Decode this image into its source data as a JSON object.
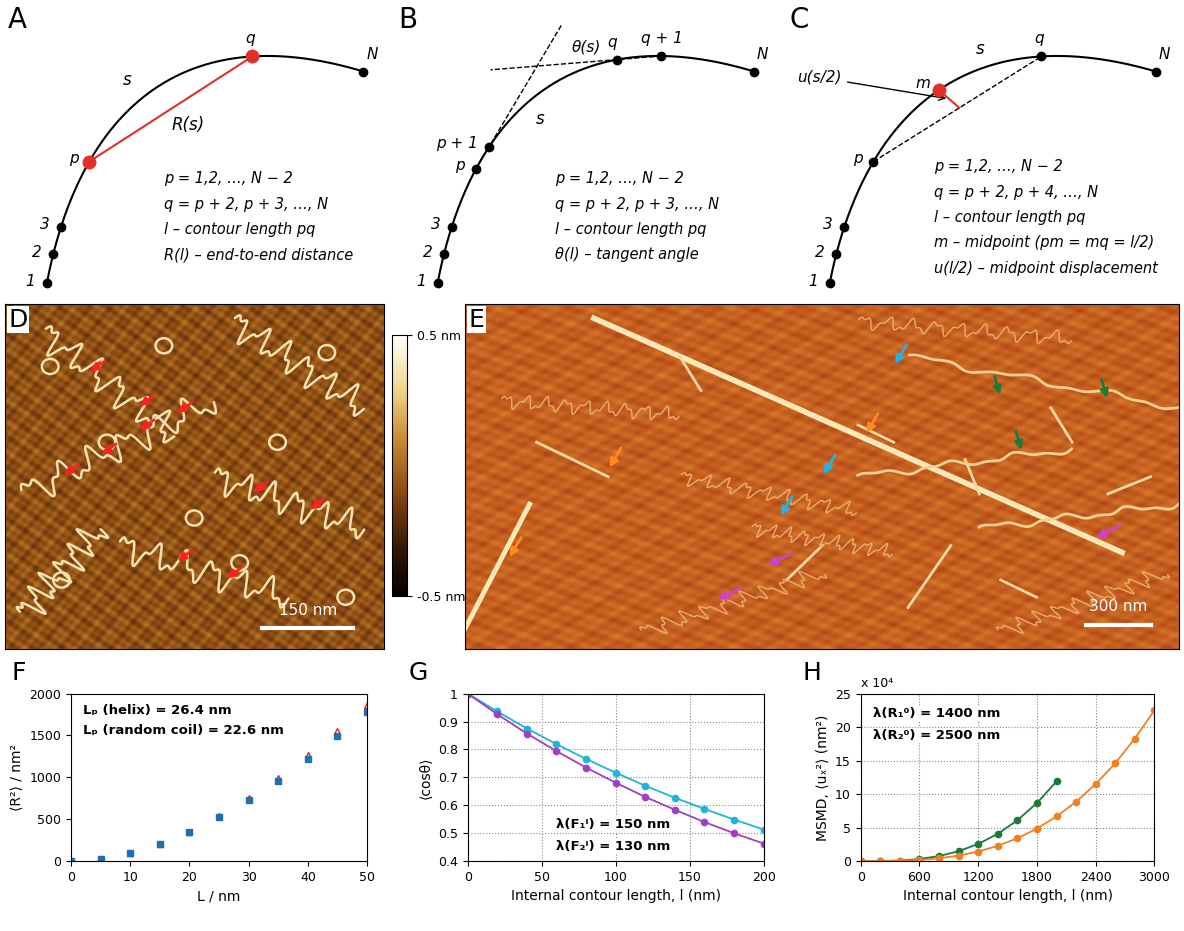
{
  "panels": {
    "A": {
      "label": "A",
      "points": [
        "1",
        "2",
        "3",
        "p",
        "q",
        "N"
      ],
      "arc": "s",
      "chord": "R(s)",
      "legend_lines": [
        "p = 1,2, …, N − 2",
        "q = p + 2, p + 3, …, N",
        "l – contour length pq",
        "R(l) – end-to-end distance"
      ]
    },
    "B": {
      "label": "B",
      "points": [
        "1",
        "2",
        "3",
        "p",
        "p + 1",
        "q",
        "q + 1",
        "N"
      ],
      "arc": "s",
      "angle": "θ(s)",
      "legend_lines": [
        "p = 1,2, …, N − 2",
        "q = p + 2, p + 3, …, N",
        "l – contour length pq",
        "θ(l) – tangent angle"
      ]
    },
    "C": {
      "label": "C",
      "points": [
        "1",
        "2",
        "3",
        "p",
        "m",
        "q",
        "N"
      ],
      "arc": "s",
      "displacement": "u(s/2)",
      "legend_lines": [
        "p = 1,2, …, N − 2",
        "q = p + 2, p + 4, …, N",
        "l – contour length pq",
        "m – midpoint (pm = mq = l/2)",
        "u(l/2) – midpoint displacement"
      ]
    },
    "D": {
      "label": "D",
      "scale_bar": "150 nm",
      "colorbar": {
        "range": [
          -0.5,
          0.5
        ],
        "ticks": [
          {
            "value": 0.5,
            "label": "0.5 nm"
          },
          {
            "value": -0.5,
            "label": "-0.5 nm"
          }
        ]
      }
    },
    "E": {
      "label": "E",
      "scale_bar": "300 nm"
    }
  },
  "chart_data": [
    {
      "type": "scatter",
      "title": "F",
      "x_label": "L / nm",
      "y_label": "⟨R²⟩ / nm²",
      "x": [
        0,
        5,
        10,
        15,
        20,
        25,
        30,
        35,
        40,
        45,
        50
      ],
      "series": [
        {
          "color": "#d62728",
          "marker": "triangle",
          "values": [
            0,
            25,
            94,
            205,
            354,
            537,
            751,
            994,
            1262,
            1554,
            1868
          ]
        },
        {
          "color": "#1f6fb4",
          "marker": "square",
          "values": [
            0,
            24,
            93,
            202,
            347,
            524,
            730,
            962,
            1216,
            1492,
            1786
          ]
        }
      ],
      "xlim": [
        0,
        50
      ],
      "ylim": [
        0,
        2000
      ],
      "xticks": [
        0,
        10,
        20,
        30,
        40,
        50
      ],
      "yticks": [
        0,
        500,
        1000,
        1500,
        2000
      ],
      "annotations": [
        "Lₚ (helix) = 26.4 nm",
        "Lₚ (random coil) = 22.6 nm"
      ],
      "grid": false
    },
    {
      "type": "line",
      "title": "G",
      "x_label": "Internal contour length, l (nm)",
      "y_label": "⟨cosθ⟩",
      "x": [
        0,
        20,
        40,
        60,
        80,
        100,
        120,
        140,
        160,
        180,
        200
      ],
      "series": [
        {
          "color": "#1fb5d6",
          "marker": "circle",
          "line_style": "solid",
          "values": [
            1,
            0.936,
            0.875,
            0.819,
            0.766,
            0.717,
            0.67,
            0.627,
            0.587,
            0.549,
            0.513
          ]
        },
        {
          "color": "#a040c0",
          "marker": "circle",
          "line_style": "solid",
          "values": [
            1,
            0.926,
            0.857,
            0.794,
            0.735,
            0.681,
            0.63,
            0.584,
            0.54,
            0.5,
            0.463
          ]
        }
      ],
      "xlim": [
        0,
        200
      ],
      "ylim": [
        0.4,
        1
      ],
      "xticks": [
        0,
        50,
        100,
        150,
        200
      ],
      "yticks": [
        0.4,
        0.5,
        0.6,
        0.7,
        0.8,
        0.9,
        1
      ],
      "annotations": [
        "λ(F₁ˡ) = 150 nm",
        "λ(F₂ˡ) = 130 nm"
      ],
      "grid": true
    },
    {
      "type": "line",
      "title": "H",
      "x_label": "Internal contour length, l (nm)",
      "y_label": "MSMD, ⟨uₓ²⟩ (nm²)",
      "y_axis_note": "x 10⁴",
      "x": [
        0,
        200,
        400,
        600,
        800,
        1000,
        1200,
        1400,
        1600,
        1800,
        2000,
        2200,
        2400,
        2600,
        2800,
        3000
      ],
      "series": [
        {
          "color": "#1a7a3a",
          "marker": "circle",
          "line_style": "solid",
          "values": [
            0,
            0.012,
            0.095,
            0.32,
            0.76,
            1.49,
            2.57,
            4.08,
            6.1,
            8.68,
            11.9,
            null,
            null,
            null,
            null,
            null
          ]
        },
        {
          "color": "#f08020",
          "marker": "circle",
          "line_style": "solid",
          "values": [
            0,
            0.007,
            0.05,
            0.18,
            0.43,
            0.83,
            1.44,
            2.29,
            3.41,
            4.86,
            6.67,
            8.87,
            11.5,
            14.6,
            18.3,
            22.5
          ]
        }
      ],
      "xlim": [
        0,
        3000
      ],
      "ylim": [
        0,
        25
      ],
      "xticks": [
        0,
        600,
        1200,
        1800,
        2400,
        3000
      ],
      "yticks": [
        0,
        5,
        10,
        15,
        20,
        25
      ],
      "annotations": [
        "λ(R₁⁰) = 1400 nm",
        "λ(R₂⁰) = 2500 nm"
      ],
      "grid": true
    }
  ]
}
